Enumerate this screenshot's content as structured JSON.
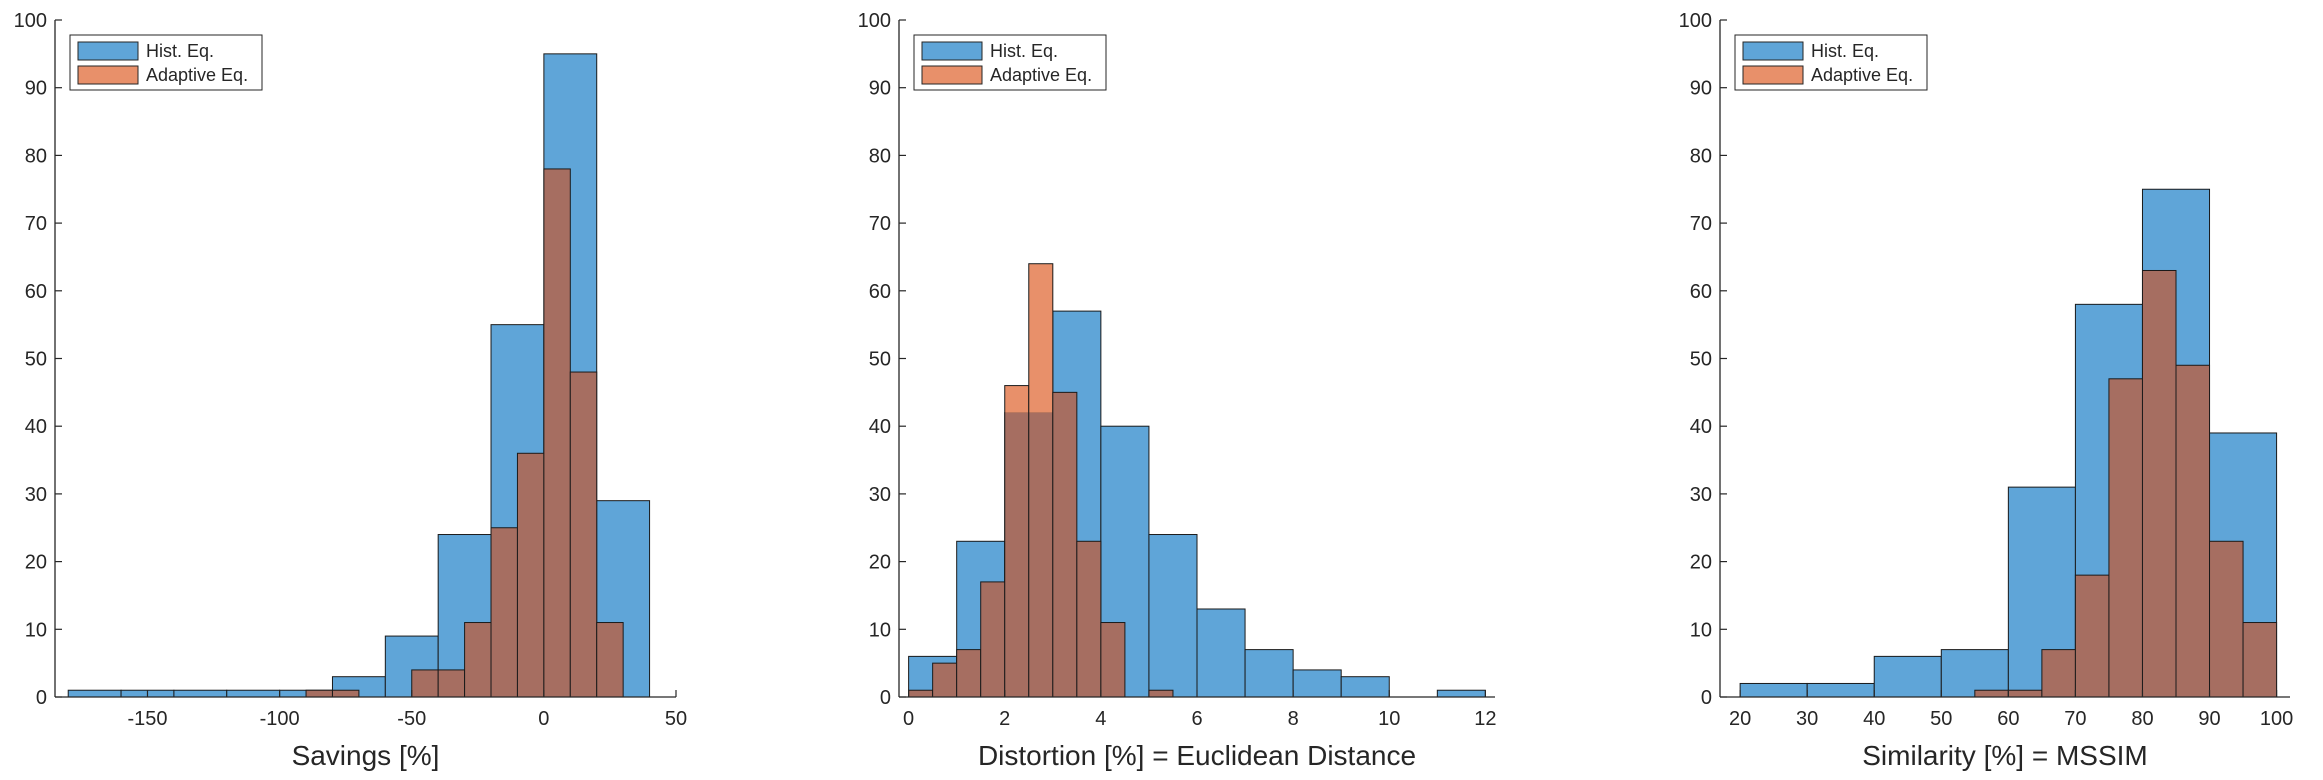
{
  "chart_data": [
    {
      "type": "histogram",
      "xlabel": "Savings [%]",
      "ylabel": "",
      "xlim": [
        -185,
        50
      ],
      "ylim": [
        0,
        100
      ],
      "xticks": [
        -150,
        -100,
        -50,
        0,
        50
      ],
      "yticks": [
        0,
        10,
        20,
        30,
        40,
        50,
        60,
        70,
        80,
        90,
        100
      ],
      "legend": {
        "position": "top-left",
        "entries": [
          "Hist. Eq.",
          "Adaptive Eq."
        ]
      },
      "series": [
        {
          "name": "Hist. Eq.",
          "color": "#5fa5d8",
          "bin_edges": [
            -180,
            -160,
            -140,
            -120,
            -100,
            -80,
            -60,
            -40,
            -20,
            0,
            20,
            40
          ],
          "counts": [
            1,
            1,
            1,
            1,
            1,
            3,
            9,
            24,
            55,
            95,
            29
          ]
        },
        {
          "name": "Adaptive Eq.",
          "color": "#e8906a",
          "bin_edges": [
            -90,
            -80,
            -70,
            -60,
            -50,
            -40,
            -30,
            -20,
            -10,
            0,
            10,
            20,
            30
          ],
          "counts": [
            1,
            1,
            0,
            0,
            4,
            4,
            11,
            25,
            36,
            78,
            48,
            11,
            1
          ]
        }
      ]
    },
    {
      "type": "histogram",
      "xlabel": "Distortion [%] = Euclidean Distance",
      "ylabel": "",
      "xlim": [
        -0.2,
        12.2
      ],
      "ylim": [
        0,
        100
      ],
      "xticks": [
        0,
        2,
        4,
        6,
        8,
        10,
        12
      ],
      "yticks": [
        0,
        10,
        20,
        30,
        40,
        50,
        60,
        70,
        80,
        90,
        100
      ],
      "legend": {
        "position": "top-left",
        "entries": [
          "Hist. Eq.",
          "Adaptive Eq."
        ]
      },
      "series": [
        {
          "name": "Hist. Eq.",
          "color": "#5fa5d8",
          "bin_edges": [
            0,
            1,
            2,
            3,
            4,
            5,
            6,
            7,
            8,
            9,
            10,
            11,
            12
          ],
          "counts": [
            6,
            23,
            42,
            57,
            40,
            24,
            13,
            7,
            4,
            3,
            0,
            1
          ]
        },
        {
          "name": "Adaptive Eq.",
          "color": "#e8906a",
          "bin_edges": [
            0,
            0.5,
            1,
            1.5,
            2,
            2.5,
            3,
            3.5,
            4,
            4.5,
            5,
            5.5
          ],
          "counts": [
            1,
            5,
            7,
            17,
            46,
            64,
            45,
            23,
            11,
            0,
            1
          ]
        }
      ]
    },
    {
      "type": "histogram",
      "xlabel": "Similarity [%] = MSSIM",
      "ylabel": "",
      "xlim": [
        17,
        102
      ],
      "ylim": [
        0,
        100
      ],
      "xticks": [
        20,
        30,
        40,
        50,
        60,
        70,
        80,
        90,
        100
      ],
      "yticks": [
        0,
        10,
        20,
        30,
        40,
        50,
        60,
        70,
        80,
        90,
        100
      ],
      "legend": {
        "position": "top-left",
        "entries": [
          "Hist. Eq.",
          "Adaptive Eq."
        ]
      },
      "series": [
        {
          "name": "Hist. Eq.",
          "color": "#5fa5d8",
          "bin_edges": [
            20,
            30,
            40,
            50,
            60,
            70,
            80,
            90,
            100
          ],
          "counts": [
            2,
            2,
            6,
            7,
            31,
            58,
            75,
            39
          ]
        },
        {
          "name": "Adaptive Eq.",
          "color": "#e8906a",
          "bin_edges": [
            55,
            60,
            65,
            70,
            75,
            80,
            85,
            90,
            95,
            100
          ],
          "counts": [
            1,
            1,
            7,
            18,
            47,
            63,
            49,
            23,
            11
          ]
        }
      ]
    }
  ]
}
